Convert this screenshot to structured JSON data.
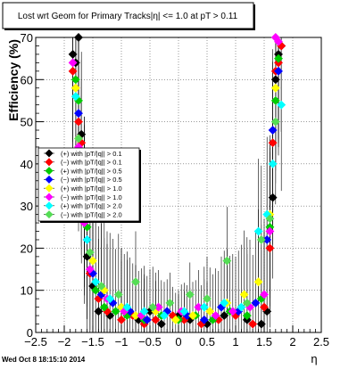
{
  "chart_data": {
    "type": "scatter",
    "title": "Lost wrt Geom for Primary Tracks|η| <= 1.0 at pT > 0.11",
    "xlabel": "η",
    "ylabel": "Efficiency (%)",
    "xlim": [
      -2.5,
      2.5
    ],
    "ylim": [
      0,
      70
    ],
    "grid": true,
    "legend_position": "left-middle",
    "x_ticks": [
      "−2.5",
      "−2",
      "−1.5",
      "−1",
      "−0.5",
      "0",
      "0.5",
      "1",
      "1.5",
      "2",
      "2.5"
    ],
    "y_ticks": [
      "0",
      "10",
      "20",
      "30",
      "40",
      "50",
      "60",
      "70"
    ],
    "series": [
      {
        "name": "(+) with |pT/|q|| > 0.1",
        "color": "#000000",
        "x": [
          -1.85,
          -1.8,
          -1.75,
          -1.7,
          -1.65,
          -1.6,
          -1.5,
          -1.4,
          -1.2,
          -1.0,
          -0.7,
          -0.5,
          -0.3,
          0.0,
          0.2,
          0.5,
          0.8,
          1.2,
          1.45,
          1.55,
          1.65,
          1.7,
          1.75,
          1.8
        ],
        "y": [
          66,
          64,
          70,
          47,
          32,
          18,
          11,
          5,
          4,
          6,
          3,
          5,
          2,
          4,
          3,
          2,
          4,
          3,
          2,
          5,
          32,
          60,
          66,
          68
        ]
      },
      {
        "name": "(−) with |pT/|q|| > 0.1",
        "color": "#ff0000",
        "x": [
          -1.85,
          -1.8,
          -1.75,
          -1.7,
          -1.65,
          -1.55,
          -1.4,
          -1.25,
          -1.0,
          -0.8,
          -0.6,
          -0.4,
          -0.1,
          0.1,
          0.4,
          0.7,
          1.0,
          1.3,
          1.5,
          1.6,
          1.65,
          1.7,
          1.75,
          1.8
        ],
        "y": [
          62,
          58,
          50,
          45,
          28,
          14,
          8,
          5,
          3,
          4,
          2,
          3,
          4,
          3,
          2,
          3,
          4,
          2,
          6,
          20,
          45,
          62,
          64,
          68
        ]
      },
      {
        "name": "(+) with |pT/|q|| > 0.5",
        "color": "#00cc00",
        "x": [
          -1.8,
          -1.75,
          -1.7,
          -1.6,
          -1.45,
          -1.3,
          -1.1,
          -0.9,
          -0.6,
          -0.3,
          0.0,
          0.3,
          0.6,
          0.9,
          1.2,
          1.45,
          1.6,
          1.7,
          1.75
        ],
        "y": [
          60,
          55,
          40,
          25,
          10,
          6,
          5,
          4,
          3,
          4,
          3,
          4,
          3,
          5,
          4,
          8,
          25,
          55,
          65
        ]
      },
      {
        "name": "(−) with |pT/|q|| > 0.5",
        "color": "#0000ff",
        "x": [
          -1.75,
          -1.7,
          -1.6,
          -1.5,
          -1.35,
          -1.15,
          -0.85,
          -0.55,
          -0.2,
          0.15,
          0.45,
          0.75,
          1.05,
          1.35,
          1.55,
          1.65,
          1.75
        ],
        "y": [
          52,
          38,
          22,
          14,
          9,
          7,
          5,
          3,
          5,
          4,
          3,
          6,
          5,
          7,
          22,
          48,
          62
        ]
      },
      {
        "name": "(+) with |pT/|q|| > 1.0",
        "color": "#ffff00",
        "x": [
          -1.8,
          -1.75,
          -1.65,
          -1.5,
          -1.3,
          -1.0,
          -0.75,
          -0.4,
          -0.05,
          0.25,
          0.55,
          0.85,
          1.15,
          1.4,
          1.6,
          1.7
        ],
        "y": [
          58,
          46,
          30,
          17,
          10,
          6,
          4,
          5,
          3,
          4,
          5,
          7,
          9,
          12,
          28,
          58
        ]
      },
      {
        "name": "(−) with |pT/|q|| > 1.0",
        "color": "#ff00ff",
        "x": [
          -1.85,
          -1.75,
          -1.65,
          -1.55,
          -1.25,
          -0.95,
          -0.65,
          -0.35,
          0.05,
          0.35,
          0.65,
          0.95,
          1.25,
          1.5,
          1.6,
          1.7,
          1.75
        ],
        "y": [
          64,
          44,
          26,
          15,
          8,
          5,
          4,
          6,
          5,
          6,
          4,
          5,
          6,
          9,
          24,
          70,
          69
        ]
      },
      {
        "name": "(+) with |pT/|q|| > 2.0",
        "color": "#00ffff",
        "x": [
          -1.8,
          -1.7,
          -1.6,
          -1.45,
          -1.2,
          -0.9,
          -0.6,
          -0.25,
          0.1,
          0.45,
          0.8,
          1.1,
          1.4,
          1.55,
          1.65,
          1.8
        ],
        "y": [
          56,
          36,
          22,
          12,
          8,
          6,
          5,
          4,
          5,
          6,
          7,
          6,
          24,
          28,
          40,
          54
        ]
      },
      {
        "name": "(−) with |pT/|q|| > 2.0",
        "color": "#55dd55",
        "x": [
          -1.75,
          -1.65,
          -1.55,
          -1.35,
          -1.05,
          -0.75,
          -0.45,
          -0.15,
          0.2,
          0.5,
          0.85,
          1.2,
          1.45,
          1.6,
          1.7
        ],
        "y": [
          46,
          32,
          19,
          11,
          9,
          12,
          6,
          7,
          9,
          8,
          17,
          7,
          22,
          27,
          50
        ]
      }
    ]
  },
  "footer": "Wed Oct  8 18:15:10 2014"
}
